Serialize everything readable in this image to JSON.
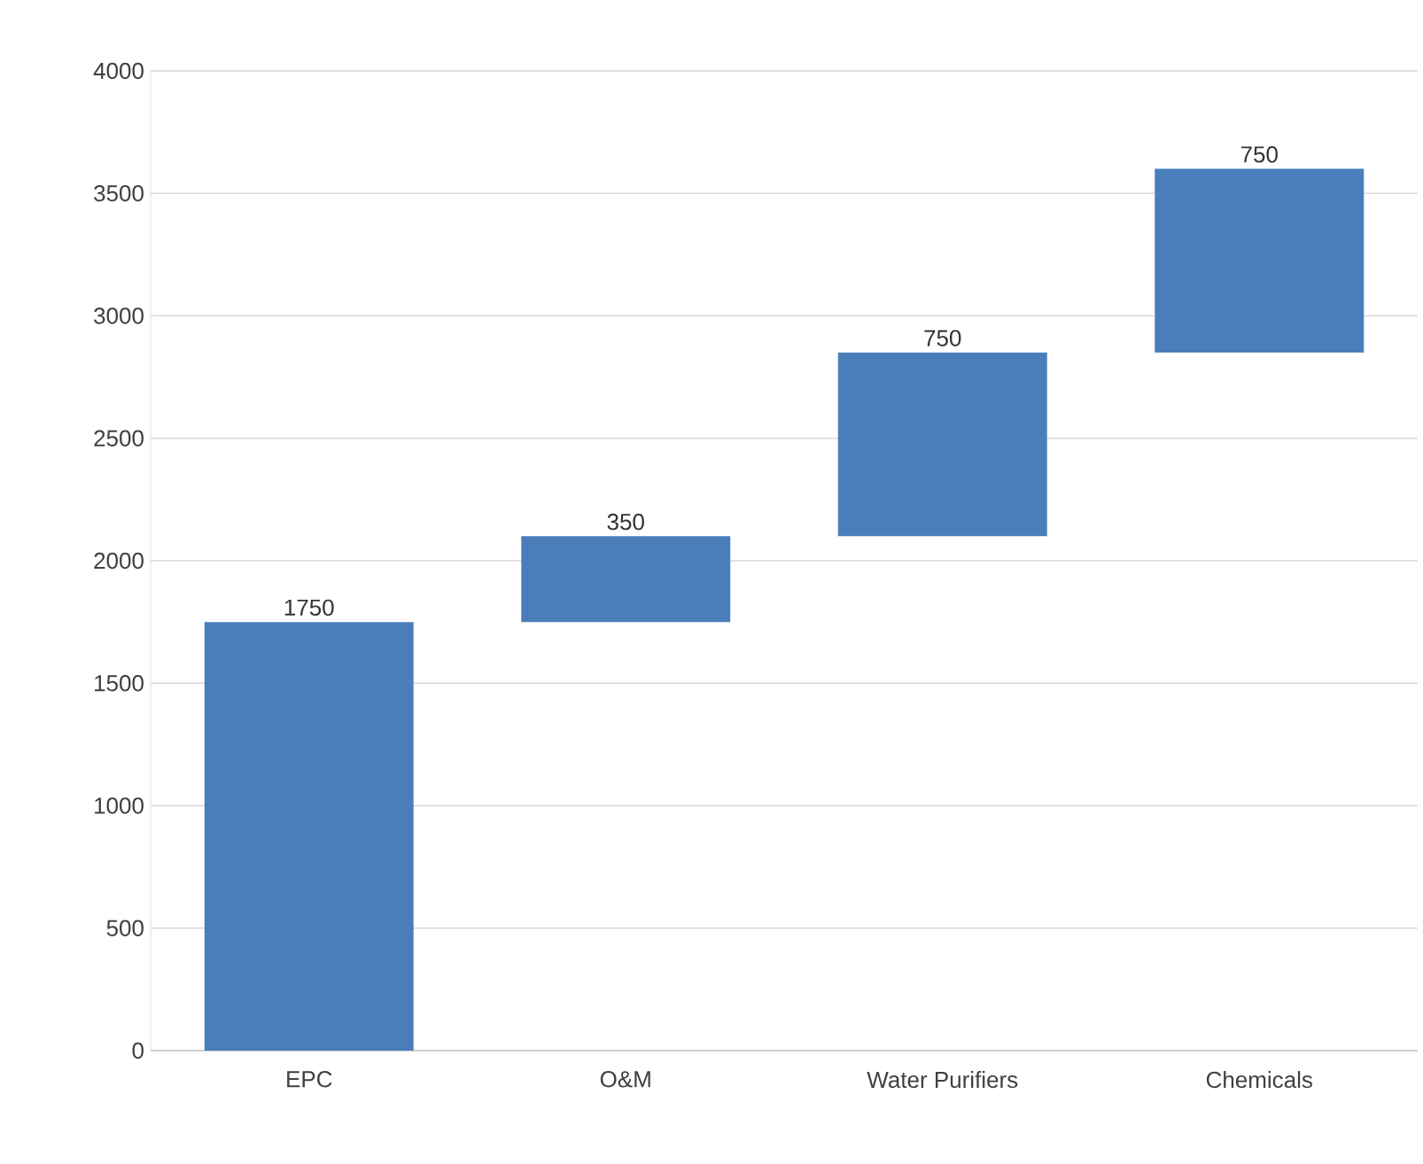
{
  "chart_data": {
    "type": "bar",
    "categories": [
      "EPC",
      "O&M",
      "Water Purifiers",
      "Chemicals"
    ],
    "values": [
      1750,
      350,
      750,
      750
    ],
    "base": [
      0,
      1750,
      2100,
      2850
    ],
    "value_labels": [
      "1750",
      "350",
      "750",
      "750"
    ],
    "color": "#4a7ebb",
    "ylim": [
      0,
      4000
    ],
    "yticks": [
      0,
      500,
      1000,
      1500,
      2000,
      2500,
      3000,
      3500,
      4000
    ],
    "grid": "y"
  }
}
